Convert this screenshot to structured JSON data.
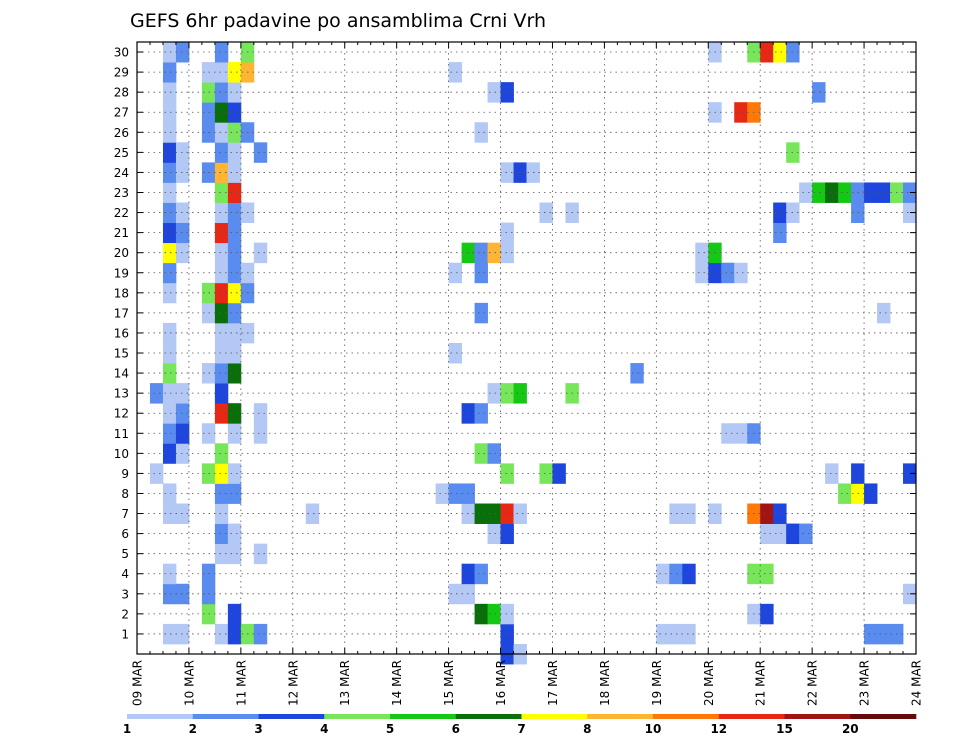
{
  "chart_data": {
    "type": "heatmap",
    "title": "GEFS 6hr padavine po ansamblima Crni Vrh",
    "x_tick_labels": [
      "09 MAR",
      "10 MAR",
      "11 MAR",
      "12 MAR",
      "13 MAR",
      "14 MAR",
      "15 MAR",
      "16 MAR",
      "17 MAR",
      "18 MAR",
      "19 MAR",
      "20 MAR",
      "21 MAR",
      "22 MAR",
      "23 MAR",
      "24 MAR"
    ],
    "y_tick_labels": [
      "1",
      "2",
      "3",
      "4",
      "5",
      "6",
      "7",
      "8",
      "9",
      "10",
      "11",
      "12",
      "13",
      "14",
      "15",
      "16",
      "17",
      "18",
      "19",
      "20",
      "21",
      "22",
      "23",
      "24",
      "25",
      "26",
      "27",
      "28",
      "29",
      "30"
    ],
    "x_range_steps": [
      0,
      60
    ],
    "steps_per_day": 4,
    "y_range": [
      0,
      30
    ],
    "grid": true,
    "legend_placement": "bottom",
    "legend": {
      "thresholds": [
        "1",
        "2",
        "3",
        "4",
        "5",
        "6",
        "7",
        "8",
        "10",
        "12",
        "15",
        "20"
      ],
      "colors": [
        "#b4c8f5",
        "#5a8cf0",
        "#1e46dc",
        "#78e65a",
        "#14c814",
        "#0a6e0a",
        "#ffff00",
        "#ffb432",
        "#ff780a",
        "#e62814",
        "#a01414",
        "#640a0a"
      ]
    },
    "cells": [
      {
        "member": 0,
        "step": 28,
        "level": 2
      },
      {
        "member": 0,
        "step": 29,
        "level": 0
      },
      {
        "member": 1,
        "step": 2,
        "level": 0
      },
      {
        "member": 1,
        "step": 3,
        "level": 0
      },
      {
        "member": 1,
        "step": 6,
        "level": 0
      },
      {
        "member": 1,
        "step": 7,
        "level": 2
      },
      {
        "member": 1,
        "step": 8,
        "level": 3
      },
      {
        "member": 1,
        "step": 9,
        "level": 1
      },
      {
        "member": 1,
        "step": 28,
        "level": 2
      },
      {
        "member": 1,
        "step": 40,
        "level": 0
      },
      {
        "member": 1,
        "step": 41,
        "level": 0
      },
      {
        "member": 1,
        "step": 42,
        "level": 0
      },
      {
        "member": 1,
        "step": 56,
        "level": 1
      },
      {
        "member": 1,
        "step": 57,
        "level": 1
      },
      {
        "member": 1,
        "step": 58,
        "level": 1
      },
      {
        "member": 2,
        "step": 5,
        "level": 3
      },
      {
        "member": 2,
        "step": 7,
        "level": 2
      },
      {
        "member": 2,
        "step": 26,
        "level": 5
      },
      {
        "member": 2,
        "step": 27,
        "level": 4
      },
      {
        "member": 2,
        "step": 28,
        "level": 0
      },
      {
        "member": 2,
        "step": 47,
        "level": 0
      },
      {
        "member": 2,
        "step": 48,
        "level": 2
      },
      {
        "member": 3,
        "step": 2,
        "level": 1
      },
      {
        "member": 3,
        "step": 3,
        "level": 1
      },
      {
        "member": 3,
        "step": 5,
        "level": 1
      },
      {
        "member": 3,
        "step": 24,
        "level": 0
      },
      {
        "member": 3,
        "step": 25,
        "level": 0
      },
      {
        "member": 3,
        "step": 59,
        "level": 0
      },
      {
        "member": 4,
        "step": 2,
        "level": 0
      },
      {
        "member": 4,
        "step": 5,
        "level": 1
      },
      {
        "member": 4,
        "step": 25,
        "level": 2
      },
      {
        "member": 4,
        "step": 26,
        "level": 1
      },
      {
        "member": 4,
        "step": 40,
        "level": 0
      },
      {
        "member": 4,
        "step": 41,
        "level": 1
      },
      {
        "member": 4,
        "step": 42,
        "level": 2
      },
      {
        "member": 4,
        "step": 47,
        "level": 3
      },
      {
        "member": 4,
        "step": 48,
        "level": 3
      },
      {
        "member": 5,
        "step": 6,
        "level": 0
      },
      {
        "member": 5,
        "step": 7,
        "level": 0
      },
      {
        "member": 5,
        "step": 9,
        "level": 0
      },
      {
        "member": 6,
        "step": 6,
        "level": 1
      },
      {
        "member": 6,
        "step": 7,
        "level": 0
      },
      {
        "member": 6,
        "step": 27,
        "level": 0
      },
      {
        "member": 6,
        "step": 28,
        "level": 2
      },
      {
        "member": 6,
        "step": 48,
        "level": 0
      },
      {
        "member": 6,
        "step": 49,
        "level": 0
      },
      {
        "member": 6,
        "step": 50,
        "level": 2
      },
      {
        "member": 6,
        "step": 51,
        "level": 1
      },
      {
        "member": 7,
        "step": 2,
        "level": 0
      },
      {
        "member": 7,
        "step": 3,
        "level": 0
      },
      {
        "member": 7,
        "step": 6,
        "level": 0
      },
      {
        "member": 7,
        "step": 13,
        "level": 0
      },
      {
        "member": 7,
        "step": 25,
        "level": 0
      },
      {
        "member": 7,
        "step": 26,
        "level": 5
      },
      {
        "member": 7,
        "step": 27,
        "level": 5
      },
      {
        "member": 7,
        "step": 28,
        "level": 9
      },
      {
        "member": 7,
        "step": 29,
        "level": 0
      },
      {
        "member": 7,
        "step": 41,
        "level": 0
      },
      {
        "member": 7,
        "step": 42,
        "level": 0
      },
      {
        "member": 7,
        "step": 44,
        "level": 0
      },
      {
        "member": 7,
        "step": 47,
        "level": 8
      },
      {
        "member": 7,
        "step": 48,
        "level": 10
      },
      {
        "member": 7,
        "step": 49,
        "level": 2
      },
      {
        "member": 8,
        "step": 2,
        "level": 0
      },
      {
        "member": 8,
        "step": 6,
        "level": 1
      },
      {
        "member": 8,
        "step": 7,
        "level": 1
      },
      {
        "member": 8,
        "step": 23,
        "level": 0
      },
      {
        "member": 8,
        "step": 24,
        "level": 1
      },
      {
        "member": 8,
        "step": 25,
        "level": 1
      },
      {
        "member": 8,
        "step": 54,
        "level": 3
      },
      {
        "member": 8,
        "step": 55,
        "level": 6
      },
      {
        "member": 8,
        "step": 56,
        "level": 2
      },
      {
        "member": 9,
        "step": 1,
        "level": 0
      },
      {
        "member": 9,
        "step": 5,
        "level": 3
      },
      {
        "member": 9,
        "step": 6,
        "level": 6
      },
      {
        "member": 9,
        "step": 7,
        "level": 0
      },
      {
        "member": 9,
        "step": 28,
        "level": 3
      },
      {
        "member": 9,
        "step": 31,
        "level": 3
      },
      {
        "member": 9,
        "step": 32,
        "level": 2
      },
      {
        "member": 9,
        "step": 53,
        "level": 0
      },
      {
        "member": 9,
        "step": 55,
        "level": 2
      },
      {
        "member": 9,
        "step": 59,
        "level": 2
      },
      {
        "member": 10,
        "step": 2,
        "level": 2
      },
      {
        "member": 10,
        "step": 3,
        "level": 0
      },
      {
        "member": 10,
        "step": 6,
        "level": 3
      },
      {
        "member": 10,
        "step": 26,
        "level": 3
      },
      {
        "member": 10,
        "step": 27,
        "level": 1
      },
      {
        "member": 11,
        "step": 2,
        "level": 1
      },
      {
        "member": 11,
        "step": 3,
        "level": 2
      },
      {
        "member": 11,
        "step": 5,
        "level": 0
      },
      {
        "member": 11,
        "step": 7,
        "level": 0
      },
      {
        "member": 11,
        "step": 9,
        "level": 0
      },
      {
        "member": 11,
        "step": 45,
        "level": 0
      },
      {
        "member": 11,
        "step": 46,
        "level": 0
      },
      {
        "member": 11,
        "step": 47,
        "level": 1
      },
      {
        "member": 12,
        "step": 2,
        "level": 0
      },
      {
        "member": 12,
        "step": 3,
        "level": 1
      },
      {
        "member": 12,
        "step": 6,
        "level": 9
      },
      {
        "member": 12,
        "step": 7,
        "level": 5
      },
      {
        "member": 12,
        "step": 9,
        "level": 0
      },
      {
        "member": 12,
        "step": 25,
        "level": 2
      },
      {
        "member": 12,
        "step": 26,
        "level": 1
      },
      {
        "member": 13,
        "step": 1,
        "level": 1
      },
      {
        "member": 13,
        "step": 2,
        "level": 0
      },
      {
        "member": 13,
        "step": 3,
        "level": 0
      },
      {
        "member": 13,
        "step": 6,
        "level": 2
      },
      {
        "member": 13,
        "step": 27,
        "level": 0
      },
      {
        "member": 13,
        "step": 28,
        "level": 3
      },
      {
        "member": 13,
        "step": 29,
        "level": 4
      },
      {
        "member": 13,
        "step": 33,
        "level": 3
      },
      {
        "member": 14,
        "step": 2,
        "level": 3
      },
      {
        "member": 14,
        "step": 5,
        "level": 0
      },
      {
        "member": 14,
        "step": 6,
        "level": 1
      },
      {
        "member": 14,
        "step": 7,
        "level": 5
      },
      {
        "member": 14,
        "step": 38,
        "level": 1
      },
      {
        "member": 15,
        "step": 2,
        "level": 0
      },
      {
        "member": 15,
        "step": 6,
        "level": 0
      },
      {
        "member": 15,
        "step": 7,
        "level": 0
      },
      {
        "member": 15,
        "step": 24,
        "level": 0
      },
      {
        "member": 16,
        "step": 2,
        "level": 0
      },
      {
        "member": 16,
        "step": 6,
        "level": 0
      },
      {
        "member": 16,
        "step": 7,
        "level": 0
      },
      {
        "member": 16,
        "step": 8,
        "level": 0
      },
      {
        "member": 17,
        "step": 5,
        "level": 0
      },
      {
        "member": 17,
        "step": 6,
        "level": 5
      },
      {
        "member": 17,
        "step": 7,
        "level": 1
      },
      {
        "member": 17,
        "step": 26,
        "level": 1
      },
      {
        "member": 17,
        "step": 57,
        "level": 0
      },
      {
        "member": 18,
        "step": 2,
        "level": 0
      },
      {
        "member": 18,
        "step": 5,
        "level": 3
      },
      {
        "member": 18,
        "step": 6,
        "level": 9
      },
      {
        "member": 18,
        "step": 7,
        "level": 6
      },
      {
        "member": 18,
        "step": 8,
        "level": 1
      },
      {
        "member": 19,
        "step": 2,
        "level": 1
      },
      {
        "member": 19,
        "step": 6,
        "level": 0
      },
      {
        "member": 19,
        "step": 7,
        "level": 1
      },
      {
        "member": 19,
        "step": 8,
        "level": 0
      },
      {
        "member": 19,
        "step": 24,
        "level": 0
      },
      {
        "member": 19,
        "step": 26,
        "level": 1
      },
      {
        "member": 19,
        "step": 43,
        "level": 0
      },
      {
        "member": 19,
        "step": 44,
        "level": 2
      },
      {
        "member": 19,
        "step": 45,
        "level": 1
      },
      {
        "member": 19,
        "step": 46,
        "level": 0
      },
      {
        "member": 20,
        "step": 2,
        "level": 6
      },
      {
        "member": 20,
        "step": 3,
        "level": 0
      },
      {
        "member": 20,
        "step": 6,
        "level": 0
      },
      {
        "member": 20,
        "step": 7,
        "level": 1
      },
      {
        "member": 20,
        "step": 9,
        "level": 0
      },
      {
        "member": 20,
        "step": 25,
        "level": 4
      },
      {
        "member": 20,
        "step": 26,
        "level": 1
      },
      {
        "member": 20,
        "step": 27,
        "level": 7
      },
      {
        "member": 20,
        "step": 28,
        "level": 0
      },
      {
        "member": 20,
        "step": 43,
        "level": 0
      },
      {
        "member": 20,
        "step": 44,
        "level": 4
      },
      {
        "member": 21,
        "step": 2,
        "level": 2
      },
      {
        "member": 21,
        "step": 3,
        "level": 1
      },
      {
        "member": 21,
        "step": 6,
        "level": 9
      },
      {
        "member": 21,
        "step": 7,
        "level": 1
      },
      {
        "member": 21,
        "step": 28,
        "level": 0
      },
      {
        "member": 21,
        "step": 49,
        "level": 1
      },
      {
        "member": 22,
        "step": 2,
        "level": 1
      },
      {
        "member": 22,
        "step": 3,
        "level": 0
      },
      {
        "member": 22,
        "step": 6,
        "level": 0
      },
      {
        "member": 22,
        "step": 7,
        "level": 1
      },
      {
        "member": 22,
        "step": 8,
        "level": 0
      },
      {
        "member": 22,
        "step": 31,
        "level": 0
      },
      {
        "member": 22,
        "step": 33,
        "level": 0
      },
      {
        "member": 22,
        "step": 49,
        "level": 2
      },
      {
        "member": 22,
        "step": 50,
        "level": 0
      },
      {
        "member": 22,
        "step": 55,
        "level": 1
      },
      {
        "member": 22,
        "step": 59,
        "level": 0
      },
      {
        "member": 23,
        "step": 2,
        "level": 0
      },
      {
        "member": 23,
        "step": 6,
        "level": 3
      },
      {
        "member": 23,
        "step": 7,
        "level": 9
      },
      {
        "member": 23,
        "step": 51,
        "level": 0
      },
      {
        "member": 23,
        "step": 52,
        "level": 4
      },
      {
        "member": 23,
        "step": 53,
        "level": 5
      },
      {
        "member": 23,
        "step": 54,
        "level": 4
      },
      {
        "member": 23,
        "step": 55,
        "level": 1
      },
      {
        "member": 23,
        "step": 56,
        "level": 2
      },
      {
        "member": 23,
        "step": 57,
        "level": 2
      },
      {
        "member": 23,
        "step": 58,
        "level": 3
      },
      {
        "member": 23,
        "step": 59,
        "level": 1
      },
      {
        "member": 24,
        "step": 2,
        "level": 1
      },
      {
        "member": 24,
        "step": 3,
        "level": 0
      },
      {
        "member": 24,
        "step": 5,
        "level": 1
      },
      {
        "member": 24,
        "step": 6,
        "level": 7
      },
      {
        "member": 24,
        "step": 7,
        "level": 0
      },
      {
        "member": 24,
        "step": 28,
        "level": 0
      },
      {
        "member": 24,
        "step": 29,
        "level": 2
      },
      {
        "member": 24,
        "step": 30,
        "level": 0
      },
      {
        "member": 25,
        "step": 2,
        "level": 2
      },
      {
        "member": 25,
        "step": 3,
        "level": 0
      },
      {
        "member": 25,
        "step": 6,
        "level": 1
      },
      {
        "member": 25,
        "step": 7,
        "level": 0
      },
      {
        "member": 25,
        "step": 9,
        "level": 1
      },
      {
        "member": 25,
        "step": 50,
        "level": 3
      },
      {
        "member": 26,
        "step": 2,
        "level": 0
      },
      {
        "member": 26,
        "step": 5,
        "level": 1
      },
      {
        "member": 26,
        "step": 6,
        "level": 0
      },
      {
        "member": 26,
        "step": 7,
        "level": 3
      },
      {
        "member": 26,
        "step": 8,
        "level": 1
      },
      {
        "member": 26,
        "step": 26,
        "level": 0
      },
      {
        "member": 27,
        "step": 2,
        "level": 0
      },
      {
        "member": 27,
        "step": 5,
        "level": 1
      },
      {
        "member": 27,
        "step": 6,
        "level": 5
      },
      {
        "member": 27,
        "step": 7,
        "level": 2
      },
      {
        "member": 27,
        "step": 44,
        "level": 0
      },
      {
        "member": 27,
        "step": 46,
        "level": 9
      },
      {
        "member": 27,
        "step": 47,
        "level": 8
      },
      {
        "member": 28,
        "step": 2,
        "level": 0
      },
      {
        "member": 28,
        "step": 5,
        "level": 3
      },
      {
        "member": 28,
        "step": 6,
        "level": 1
      },
      {
        "member": 28,
        "step": 7,
        "level": 0
      },
      {
        "member": 28,
        "step": 27,
        "level": 0
      },
      {
        "member": 28,
        "step": 28,
        "level": 2
      },
      {
        "member": 28,
        "step": 52,
        "level": 1
      },
      {
        "member": 29,
        "step": 2,
        "level": 1
      },
      {
        "member": 29,
        "step": 5,
        "level": 0
      },
      {
        "member": 29,
        "step": 6,
        "level": 0
      },
      {
        "member": 29,
        "step": 7,
        "level": 6
      },
      {
        "member": 29,
        "step": 8,
        "level": 7
      },
      {
        "member": 29,
        "step": 24,
        "level": 0
      },
      {
        "member": 30,
        "step": 2,
        "level": 0
      },
      {
        "member": 30,
        "step": 3,
        "level": 1
      },
      {
        "member": 30,
        "step": 6,
        "level": 1
      },
      {
        "member": 30,
        "step": 8,
        "level": 3
      },
      {
        "member": 30,
        "step": 44,
        "level": 0
      },
      {
        "member": 30,
        "step": 47,
        "level": 3
      },
      {
        "member": 30,
        "step": 48,
        "level": 9
      },
      {
        "member": 30,
        "step": 49,
        "level": 6
      },
      {
        "member": 30,
        "step": 50,
        "level": 1
      }
    ]
  }
}
